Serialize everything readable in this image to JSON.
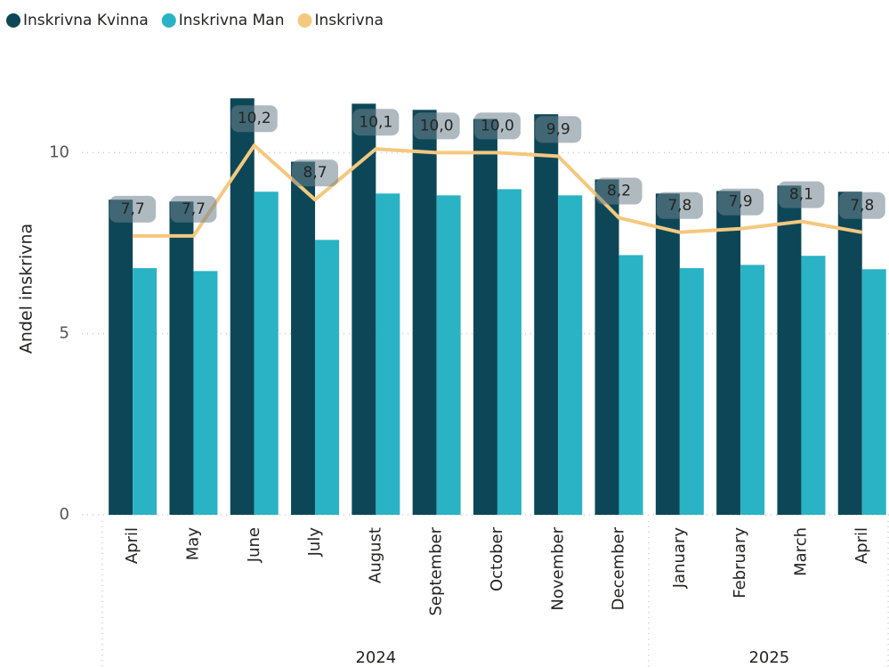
{
  "chart_data": {
    "type": "bar_line",
    "y_label": "Andel inskrivna",
    "categories": [
      "April",
      "May",
      "June",
      "July",
      "August",
      "September",
      "October",
      "November",
      "December",
      "January",
      "February",
      "March",
      "April"
    ],
    "x_groups": [
      {
        "label": "2024",
        "span": 9
      },
      {
        "label": "2025",
        "span": 4
      }
    ],
    "series": [
      {
        "name": "Inskrivna Kvinna",
        "color": "#0d4757",
        "kind": "bar",
        "values": [
          8.7,
          8.65,
          11.5,
          9.75,
          11.35,
          11.18,
          10.93,
          11.06,
          9.26,
          8.87,
          8.94,
          9.09,
          8.92
        ]
      },
      {
        "name": "Inskrivna Man",
        "color": "#2ab3c4",
        "kind": "bar",
        "values": [
          6.81,
          6.73,
          8.92,
          7.59,
          8.87,
          8.82,
          8.99,
          8.82,
          7.17,
          6.81,
          6.9,
          7.15,
          6.78
        ]
      },
      {
        "name": "Inskrivna",
        "color": "#f5c87f",
        "kind": "line",
        "values": [
          7.7,
          7.7,
          10.2,
          8.7,
          10.1,
          10.0,
          10.0,
          9.9,
          8.2,
          7.8,
          7.9,
          8.1,
          7.8
        ],
        "value_labels": [
          "7,7",
          "7,7",
          "10,2",
          "8,7",
          "10,1",
          "10,0",
          "10,0",
          "9,9",
          "8,2",
          "7,8",
          "7,9",
          "8,1",
          "7,8"
        ]
      }
    ],
    "ylim": [
      0,
      12
    ],
    "yticks": [
      0,
      5,
      10
    ],
    "grid": true
  }
}
